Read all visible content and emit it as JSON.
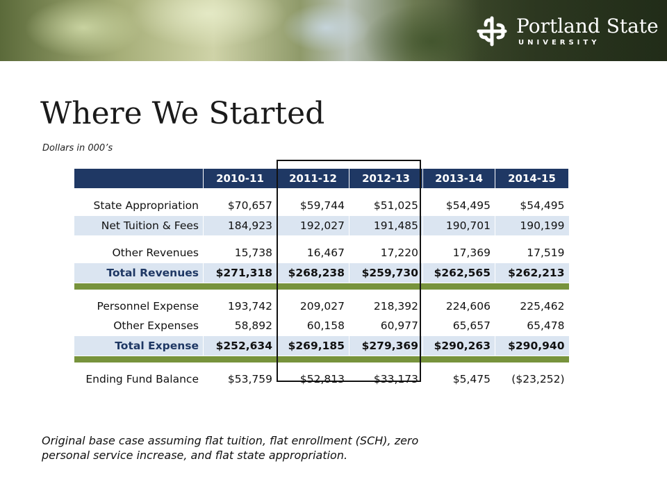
{
  "header": {
    "logo_name": "Portland State",
    "logo_sub": "UNIVERSITY",
    "logo_icon": "psu-knot-icon"
  },
  "slide": {
    "title": "Where We Started",
    "subtitle": "Dollars in 000’s",
    "note_line1": "Original base case assuming flat tuition, flat enrollment (SCH), zero",
    "note_line2": "personal service increase, and flat state appropriation."
  },
  "table": {
    "columns": [
      "2010-11",
      "2011-12",
      "2012-13",
      "2013-14",
      "2014-15"
    ],
    "rows": [
      {
        "label": "State Appropriation",
        "values": [
          "$70,657",
          "$59,744",
          "$51,025",
          "$54,495",
          "$54,495"
        ]
      },
      {
        "label": "Net Tuition & Fees",
        "values": [
          "184,923",
          "192,027",
          "191,485",
          "190,701",
          "190,199"
        ]
      },
      {
        "label": "Other Revenues",
        "values": [
          "15,738",
          "16,467",
          "17,220",
          "17,369",
          "17,519"
        ]
      },
      {
        "label": "Total Revenues",
        "values": [
          "$271,318",
          "$268,238",
          "$259,730",
          "$262,565",
          "$262,213"
        ]
      },
      {
        "label": "Personnel Expense",
        "values": [
          "193,742",
          "209,027",
          "218,392",
          "224,606",
          "225,462"
        ]
      },
      {
        "label": "Other Expenses",
        "values": [
          "58,892",
          "60,158",
          "60,977",
          "65,657",
          "65,478"
        ]
      },
      {
        "label": "Total Expense",
        "values": [
          "$252,634",
          "$269,185",
          "$279,369",
          "$290,263",
          "$290,940"
        ]
      },
      {
        "label": "Ending Fund Balance",
        "values": [
          "$53,759",
          "$52,813",
          "$33,173",
          "$5,475",
          "($23,252)"
        ]
      }
    ]
  },
  "colors": {
    "header_blue": "#1f3864",
    "row_light_blue": "#dbe5f1",
    "separator_green": "#77933c"
  }
}
